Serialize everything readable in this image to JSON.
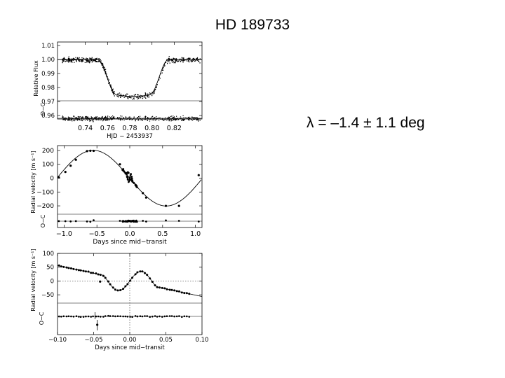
{
  "slide": {
    "title": "HD 189733",
    "lambda_text": "λ = –1.4 ± 1.1 deg"
  },
  "chart_data": [
    {
      "type": "scatter",
      "xlabel": "HJD − 2453937",
      "ylabel": "Relative Flux",
      "residual_label": "O−C",
      "xlim": [
        0.715,
        0.845
      ],
      "ylim": [
        0.955,
        1.01
      ],
      "xticks": [
        "0.74",
        "0.76",
        "0.78",
        "0.80",
        "0.82"
      ],
      "yticks": [
        "1.01",
        "1.00",
        "0.99",
        "0.98",
        "0.97",
        "0.96"
      ],
      "transit": {
        "ingress_start": 0.751,
        "ingress_end": 0.768,
        "egress_start": 0.798,
        "egress_end": 0.815,
        "depth": 0.025,
        "baseline": 1.0,
        "residual_offset": 0.958
      }
    },
    {
      "type": "line",
      "xlabel": "Days since mid−transit",
      "ylabel": "Radial velocity [m s⁻¹]",
      "residual_label": "O−C",
      "xlim": [
        -1.1,
        1.1
      ],
      "ylim": [
        -230,
        220
      ],
      "xticks": [
        "−1.0",
        "−0.5",
        "0.0",
        "0.5",
        "1.0"
      ],
      "yticks": [
        "200",
        "100",
        "0",
        "−100",
        "−200"
      ],
      "semi_amplitude": 201,
      "period_days": 2.219,
      "points": [
        [
          -1.08,
          5
        ],
        [
          -0.98,
          45
        ],
        [
          -0.9,
          90
        ],
        [
          -0.82,
          133
        ],
        [
          -0.65,
          195
        ],
        [
          -0.6,
          198
        ],
        [
          -0.55,
          197
        ],
        [
          -0.15,
          100
        ],
        [
          -0.1,
          65
        ],
        [
          -0.05,
          35
        ],
        [
          -0.04,
          10
        ],
        [
          -0.03,
          42
        ],
        [
          -0.02,
          38
        ],
        [
          0.0,
          3
        ],
        [
          0.02,
          -12
        ],
        [
          0.04,
          -22
        ],
        [
          0.1,
          -55
        ],
        [
          0.2,
          -108
        ],
        [
          0.25,
          -140
        ],
        [
          0.55,
          -200
        ],
        [
          0.75,
          -200
        ],
        [
          1.05,
          22
        ]
      ]
    },
    {
      "type": "line",
      "xlabel": "Days since mid−transit",
      "ylabel": "Radial velocity [m s⁻¹]",
      "residual_label": "O−C",
      "xlim": [
        -0.1,
        0.1
      ],
      "ylim": [
        -75,
        100
      ],
      "xticks": [
        "−0.10",
        "−0.05",
        "0.00",
        "0.05",
        "0.10"
      ],
      "yticks": [
        "100",
        "50",
        "0",
        "−50"
      ],
      "rm_amplitude": 40,
      "transit_half_duration": 0.038,
      "outlier": [
        -0.041,
        -2
      ]
    }
  ]
}
